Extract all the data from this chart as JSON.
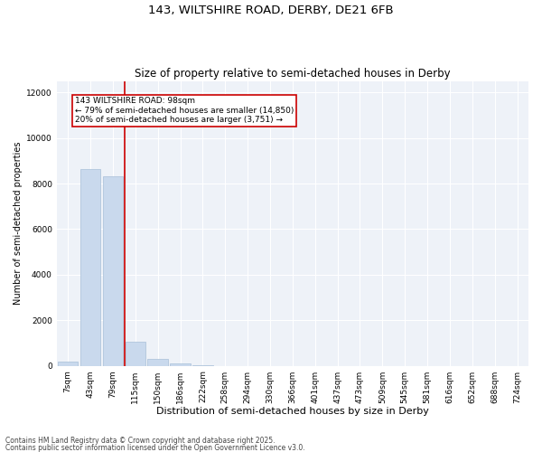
{
  "title1": "143, WILTSHIRE ROAD, DERBY, DE21 6FB",
  "title2": "Size of property relative to semi-detached houses in Derby",
  "xlabel": "Distribution of semi-detached houses by size in Derby",
  "ylabel": "Number of semi-detached properties",
  "categories": [
    "7sqm",
    "43sqm",
    "79sqm",
    "115sqm",
    "150sqm",
    "186sqm",
    "222sqm",
    "258sqm",
    "294sqm",
    "330sqm",
    "366sqm",
    "401sqm",
    "437sqm",
    "473sqm",
    "509sqm",
    "545sqm",
    "581sqm",
    "616sqm",
    "652sqm",
    "688sqm",
    "724sqm"
  ],
  "values": [
    200,
    8650,
    8300,
    1050,
    300,
    120,
    20,
    0,
    0,
    0,
    0,
    0,
    0,
    0,
    0,
    0,
    0,
    0,
    0,
    0,
    0
  ],
  "bar_color": "#c9d9ed",
  "bar_edge_color": "#a8bfd8",
  "vline_x_index": 2.53,
  "vline_color": "#cc0000",
  "annotation_box_text": "143 WILTSHIRE ROAD: 98sqm\n← 79% of semi-detached houses are smaller (14,850)\n20% of semi-detached houses are larger (3,751) →",
  "ylim": [
    0,
    12500
  ],
  "yticks": [
    0,
    2000,
    4000,
    6000,
    8000,
    10000,
    12000
  ],
  "bg_color": "#eef2f8",
  "grid_color": "#ffffff",
  "footer1": "Contains HM Land Registry data © Crown copyright and database right 2025.",
  "footer2": "Contains public sector information licensed under the Open Government Licence v3.0.",
  "title1_fontsize": 9.5,
  "title2_fontsize": 8.5,
  "xlabel_fontsize": 8,
  "ylabel_fontsize": 7,
  "tick_fontsize": 6.5,
  "annot_fontsize": 6.5,
  "footer_fontsize": 5.5
}
